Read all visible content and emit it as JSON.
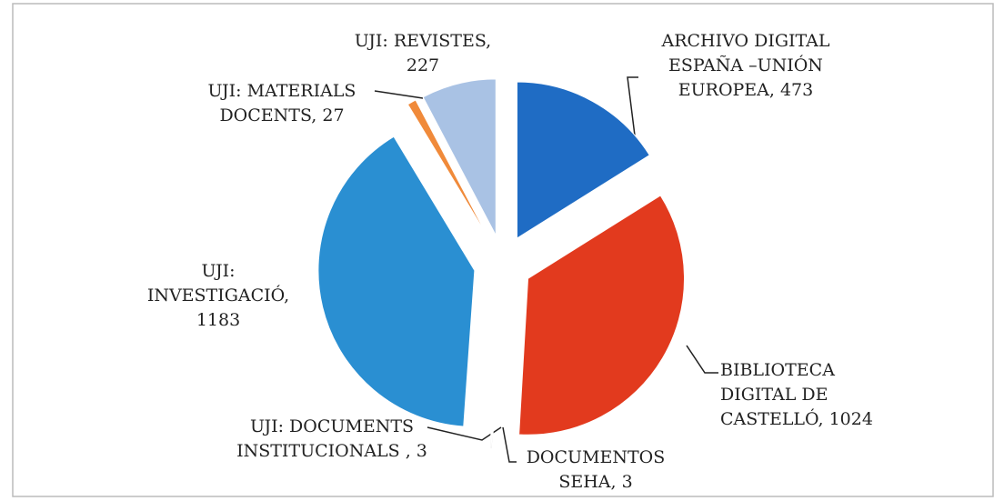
{
  "chart_data": {
    "type": "pie",
    "categories": [
      "ARCHIVO DIGITAL ESPAÑA –UNIÓN EUROPEA, 473",
      "BIBLIOTECA DIGITAL DE CASTELLÓ, 1024",
      "DOCUMENTOS SEHA, 3",
      "UJI: DOCUMENTS INSTITUCIONALS , 3",
      "UJI: INVESTIGACIÓ, 1183",
      "UJI: MATERIALS DOCENTS, 27",
      "UJI: REVISTES, 227"
    ],
    "values": [
      473,
      1024,
      3,
      3,
      1183,
      27,
      227
    ],
    "colors": [
      "#1f6cc4",
      "#e23a1e",
      "#9a9a9a",
      "#b5b5b5",
      "#2a8fd2",
      "#f08a3a",
      "#a9c2e4"
    ]
  }
}
